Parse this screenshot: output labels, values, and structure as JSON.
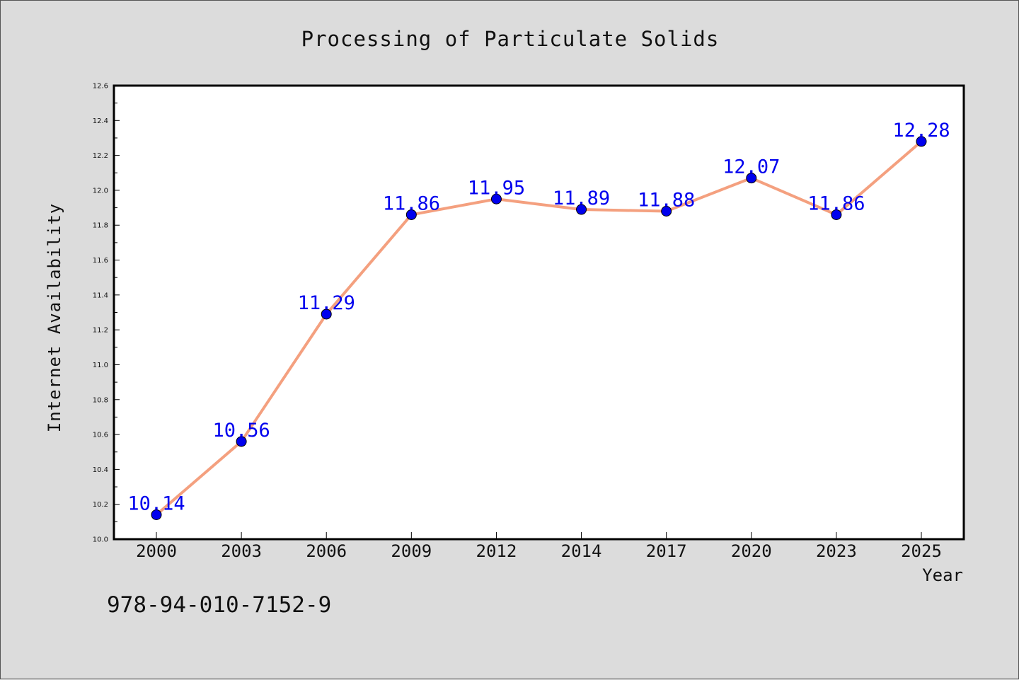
{
  "chart_data": {
    "type": "line",
    "title": "Processing of Particulate Solids",
    "xlabel": "Year",
    "ylabel": "Internet Availability",
    "categories": [
      "2000",
      "2003",
      "2006",
      "2009",
      "2012",
      "2014",
      "2017",
      "2020",
      "2023",
      "2025"
    ],
    "series": [
      {
        "values": [
          10.14,
          10.56,
          11.29,
          11.86,
          11.95,
          11.89,
          11.88,
          12.07,
          11.86,
          12.28
        ],
        "line_color": "#f4a07f",
        "marker_color": "#0000ee",
        "label_color": "#0000ee"
      }
    ],
    "data_labels": [
      "10.14",
      "10.56",
      "11.29",
      "11.86",
      "11.95",
      "11.89",
      "11.88",
      "12.07",
      "11.86",
      "12.28"
    ],
    "ylim": [
      10.0,
      12.6
    ],
    "yticks": [
      "10.0",
      "10.2",
      "10.4",
      "10.6",
      "10.8",
      "11.0",
      "11.2",
      "11.4",
      "11.6",
      "11.8",
      "12.0",
      "12.2",
      "12.4",
      "12.6"
    ],
    "grid": false,
    "legend": "none"
  },
  "annotation": {
    "isbn": "978-94-010-7152-9"
  },
  "colors": {
    "background": "#dcdcdc",
    "plot_background": "#ffffff",
    "axis": "#000000"
  }
}
